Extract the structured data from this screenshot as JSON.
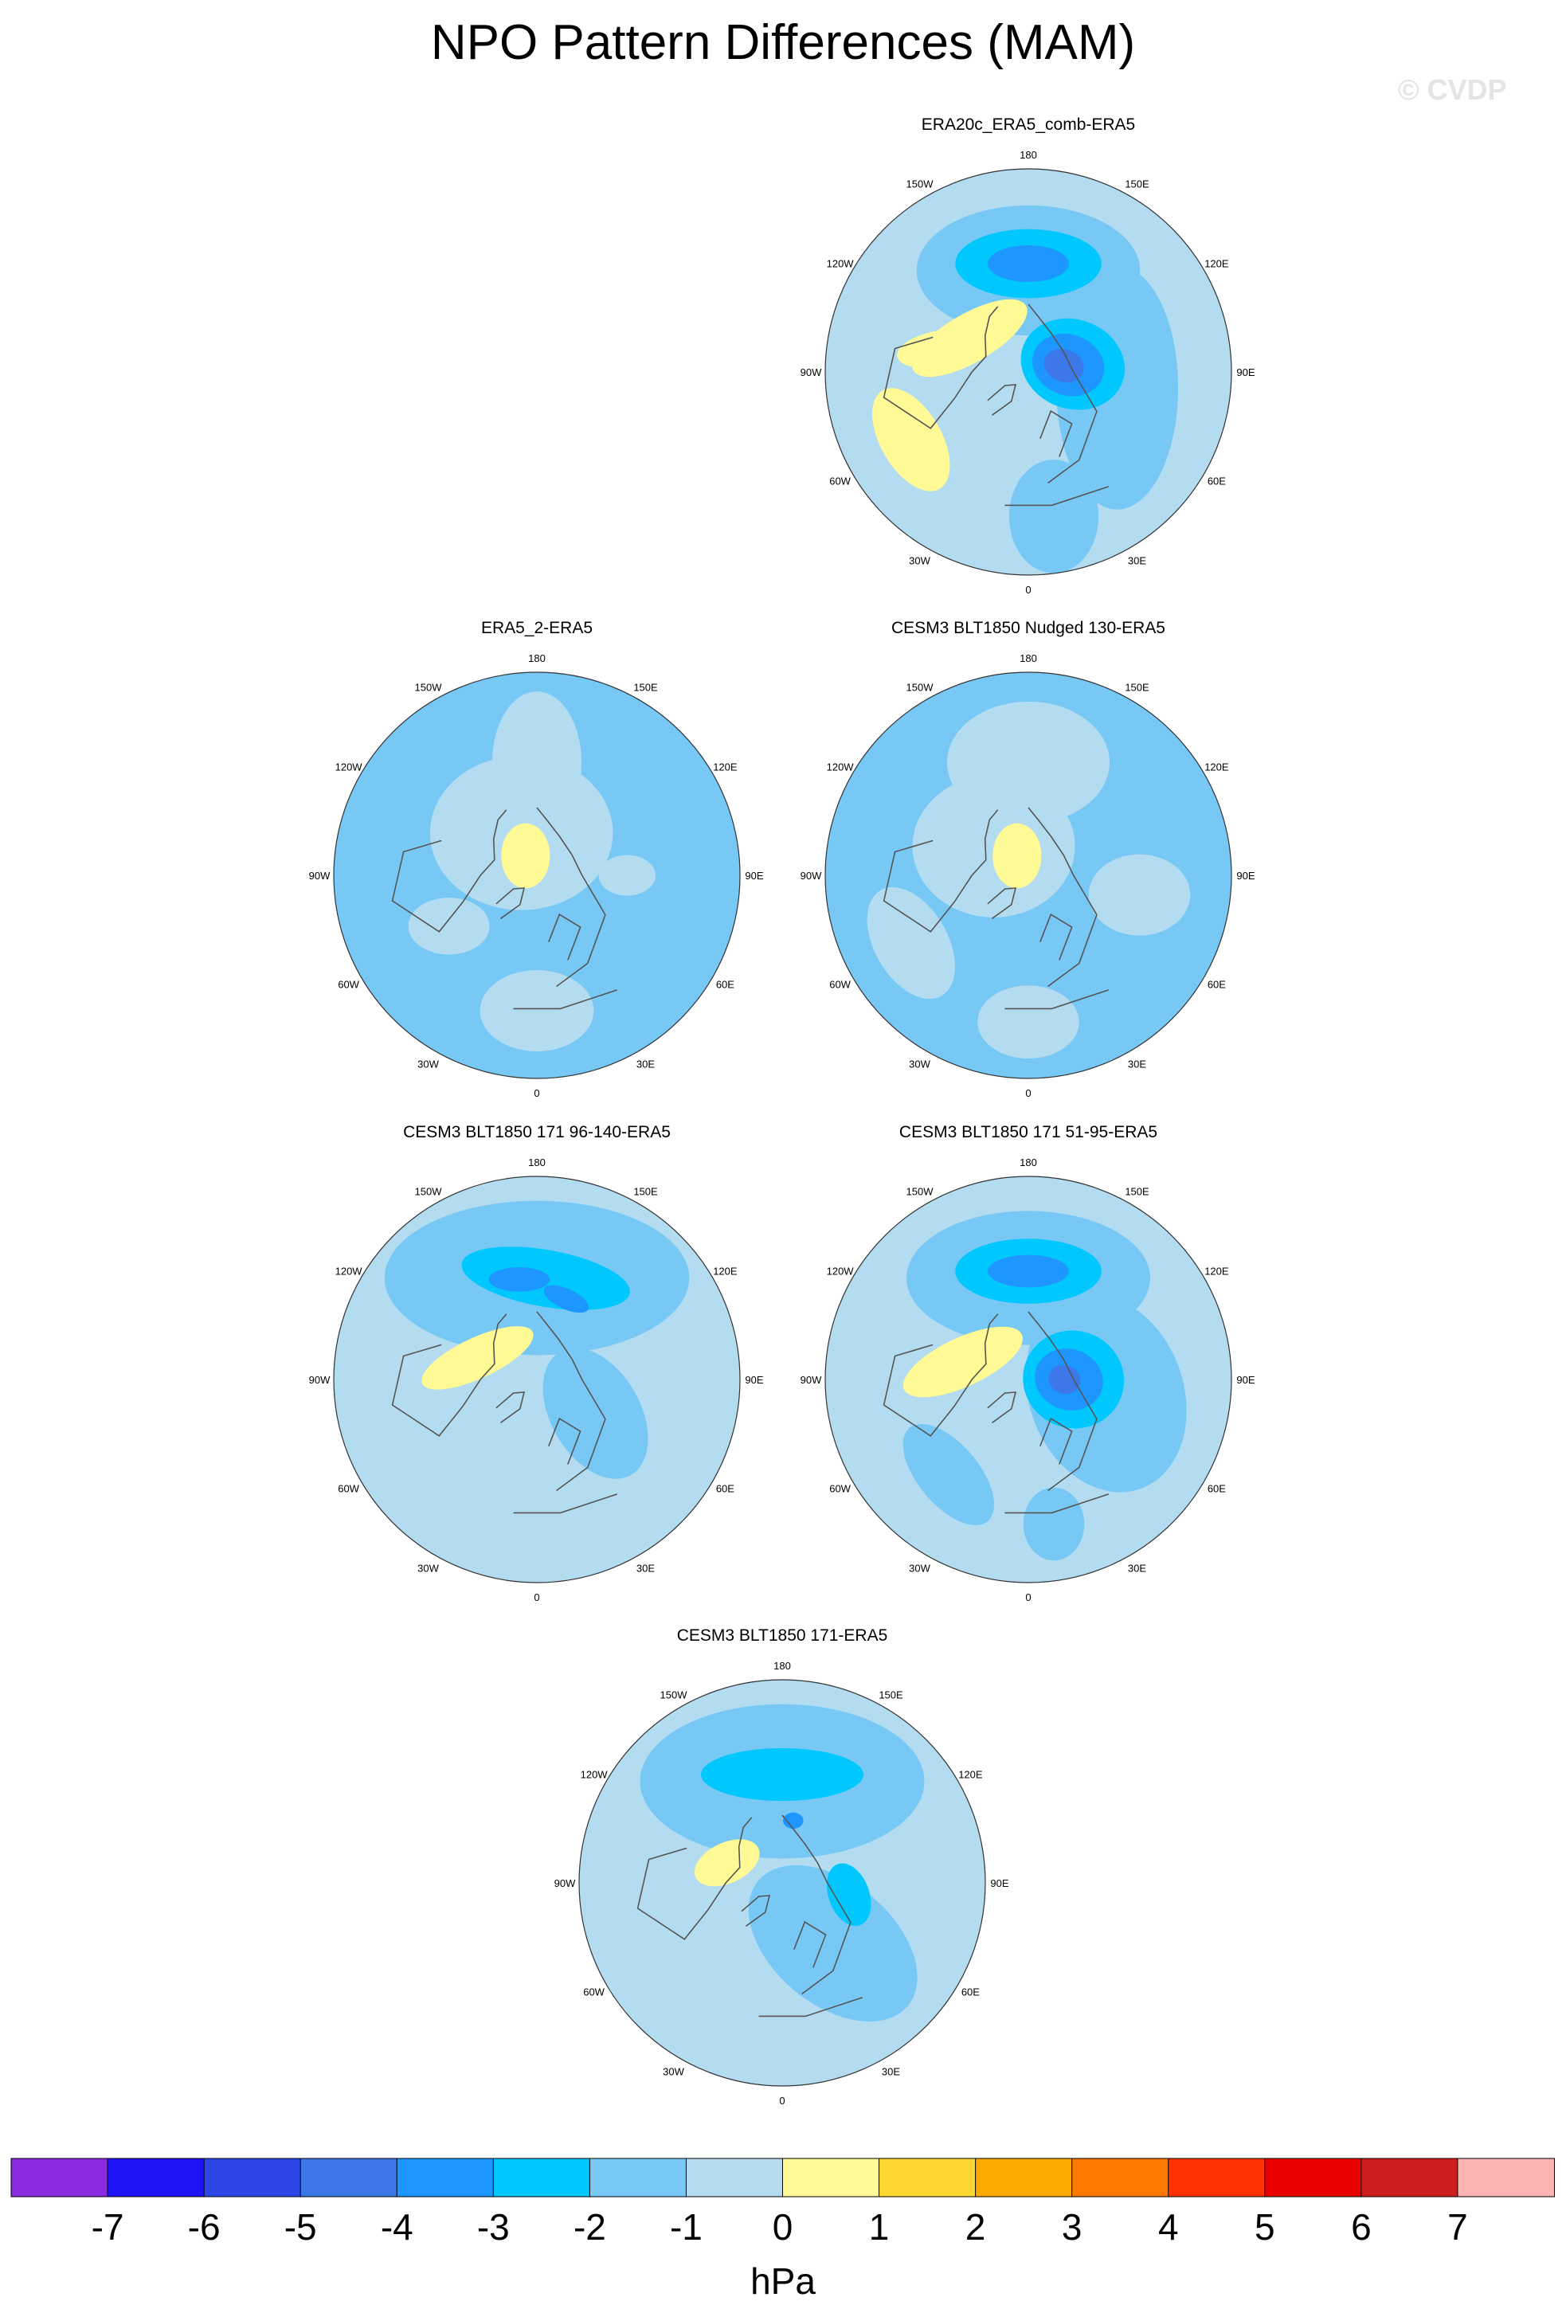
{
  "title": "NPO Pattern Differences (MAM)",
  "watermark": "© CVDP",
  "colors": {
    "levels": [
      "#8a2be2",
      "#1e14f5",
      "#2d46e6",
      "#3c78e8",
      "#1e96ff",
      "#00c8ff",
      "#78c8f5",
      "#b4dcf0",
      "#fff996",
      "#ffd732",
      "#ffaa00",
      "#ff7800",
      "#ff3200",
      "#eb0000",
      "#cd1e1e",
      "#ffb4b4"
    ],
    "coast": "#555555",
    "rim": "#333333"
  },
  "chart_data": [
    {
      "type": "polar-contour-map",
      "title": "ERA20c_ERA5_comb-ERA5",
      "lon_labels": [
        "180",
        "150E",
        "120E",
        "90E",
        "60E",
        "30E",
        "0",
        "30W",
        "60W",
        "90W",
        "120W",
        "150W"
      ],
      "features": [
        {
          "level": 0,
          "lon": 0,
          "lat": 20,
          "rx": 0.95,
          "ry": 0.95
        },
        {
          "level": -1,
          "lon": 180,
          "lat": 45,
          "rx": 0.55,
          "ry": 0.32,
          "rot": 0
        },
        {
          "level": -1,
          "lon": 80,
          "lat": 50,
          "rx": 0.6,
          "ry": 0.3,
          "rot": 90
        },
        {
          "level": -1,
          "lon": 10,
          "lat": 25,
          "rx": 0.22,
          "ry": 0.28,
          "rot": 0
        },
        {
          "level": -2,
          "lon": 180,
          "lat": 42,
          "rx": 0.36,
          "ry": 0.17,
          "rot": 0
        },
        {
          "level": -3,
          "lon": 180,
          "lat": 42,
          "rx": 0.2,
          "ry": 0.09,
          "rot": 0
        },
        {
          "level": -2,
          "lon": 100,
          "lat": 70,
          "rx": 0.26,
          "ry": 0.22,
          "rot": 20
        },
        {
          "level": -3,
          "lon": 100,
          "lat": 72,
          "rx": 0.18,
          "ry": 0.15,
          "rot": 20
        },
        {
          "level": -4,
          "lon": 100,
          "lat": 74,
          "rx": 0.1,
          "ry": 0.08,
          "rot": 20
        },
        {
          "level": 1,
          "lon": 240,
          "lat": 60,
          "rx": 0.32,
          "ry": 0.12,
          "rot": -30
        },
        {
          "level": 1,
          "lon": 300,
          "lat": 30,
          "rx": 0.28,
          "ry": 0.15,
          "rot": 60
        },
        {
          "level": 1,
          "lon": 255,
          "lat": 50,
          "rx": 0.22,
          "ry": 0.09,
          "rot": -10
        }
      ]
    },
    {
      "type": "polar-contour-map",
      "title": "ERA5_2-ERA5",
      "lon_labels": [
        "180",
        "150E",
        "120E",
        "90E",
        "60E",
        "30E",
        "0",
        "30W",
        "60W",
        "90W",
        "120W",
        "150W"
      ],
      "features": [
        {
          "level": -1,
          "lon": 0,
          "lat": 20,
          "rx": 0.95,
          "ry": 0.95
        },
        {
          "level": 0,
          "lon": 180,
          "lat": 40,
          "rx": 0.22,
          "ry": 0.35,
          "rot": 0
        },
        {
          "level": 0,
          "lon": 200,
          "lat": 70,
          "rx": 0.45,
          "ry": 0.38,
          "rot": 0
        },
        {
          "level": 0,
          "lon": 0,
          "lat": 30,
          "rx": 0.28,
          "ry": 0.2,
          "rot": 0
        },
        {
          "level": 0,
          "lon": 300,
          "lat": 45,
          "rx": 0.2,
          "ry": 0.14,
          "rot": 0
        },
        {
          "level": 0,
          "lon": 90,
          "lat": 50,
          "rx": 0.14,
          "ry": 0.1,
          "rot": 0
        },
        {
          "level": 1,
          "lon": 210,
          "lat": 80,
          "rx": 0.12,
          "ry": 0.16,
          "rot": 0
        }
      ]
    },
    {
      "type": "polar-contour-map",
      "title": "CESM3 BLT1850 Nudged 130-ERA5",
      "lon_labels": [
        "180",
        "150E",
        "120E",
        "90E",
        "60E",
        "30E",
        "0",
        "30W",
        "60W",
        "90W",
        "120W",
        "150W"
      ],
      "features": [
        {
          "level": -1,
          "lon": 0,
          "lat": 20,
          "rx": 0.95,
          "ry": 0.95
        },
        {
          "level": 0,
          "lon": 180,
          "lat": 40,
          "rx": 0.4,
          "ry": 0.3,
          "rot": 0
        },
        {
          "level": 0,
          "lon": 230,
          "lat": 70,
          "rx": 0.4,
          "ry": 0.35,
          "rot": 0
        },
        {
          "level": 0,
          "lon": 300,
          "lat": 30,
          "rx": 0.3,
          "ry": 0.18,
          "rot": 60
        },
        {
          "level": 0,
          "lon": 80,
          "lat": 40,
          "rx": 0.25,
          "ry": 0.2,
          "rot": 0
        },
        {
          "level": 0,
          "lon": 0,
          "lat": 25,
          "rx": 0.25,
          "ry": 0.18,
          "rot": 0
        },
        {
          "level": 1,
          "lon": 210,
          "lat": 80,
          "rx": 0.12,
          "ry": 0.16,
          "rot": 0
        }
      ]
    },
    {
      "type": "polar-contour-map",
      "title": "CESM3 BLT1850 171 96-140-ERA5",
      "lon_labels": [
        "180",
        "150E",
        "120E",
        "90E",
        "60E",
        "30E",
        "0",
        "30W",
        "60W",
        "90W",
        "120W",
        "150W"
      ],
      "features": [
        {
          "level": 0,
          "lon": 0,
          "lat": 20,
          "rx": 0.95,
          "ry": 0.95
        },
        {
          "level": -1,
          "lon": 180,
          "lat": 45,
          "rx": 0.75,
          "ry": 0.38,
          "rot": 0
        },
        {
          "level": -1,
          "lon": 60,
          "lat": 60,
          "rx": 0.35,
          "ry": 0.22,
          "rot": 60
        },
        {
          "level": -2,
          "lon": 175,
          "lat": 45,
          "rx": 0.42,
          "ry": 0.14,
          "rot": 10
        },
        {
          "level": -3,
          "lon": 190,
          "lat": 45,
          "rx": 0.15,
          "ry": 0.06,
          "rot": 0
        },
        {
          "level": -3,
          "lon": 160,
          "lat": 52,
          "rx": 0.12,
          "ry": 0.05,
          "rot": 25
        },
        {
          "level": 1,
          "lon": 250,
          "lat": 62,
          "rx": 0.3,
          "ry": 0.1,
          "rot": -25
        }
      ]
    },
    {
      "type": "polar-contour-map",
      "title": "CESM3 BLT1850 171 51-95-ERA5",
      "lon_labels": [
        "180",
        "150E",
        "120E",
        "90E",
        "60E",
        "30E",
        "0",
        "30W",
        "60W",
        "90W",
        "120W",
        "150W"
      ],
      "features": [
        {
          "level": 0,
          "lon": 0,
          "lat": 20,
          "rx": 0.95,
          "ry": 0.95
        },
        {
          "level": -1,
          "lon": 180,
          "lat": 45,
          "rx": 0.6,
          "ry": 0.33,
          "rot": 0
        },
        {
          "level": -1,
          "lon": 80,
          "lat": 55,
          "rx": 0.5,
          "ry": 0.38,
          "rot": 70
        },
        {
          "level": -1,
          "lon": 320,
          "lat": 35,
          "rx": 0.3,
          "ry": 0.15,
          "rot": 50
        },
        {
          "level": -1,
          "lon": 10,
          "lat": 25,
          "rx": 0.15,
          "ry": 0.18,
          "rot": 0
        },
        {
          "level": -2,
          "lon": 180,
          "lat": 42,
          "rx": 0.36,
          "ry": 0.16,
          "rot": 0
        },
        {
          "level": -3,
          "lon": 180,
          "lat": 42,
          "rx": 0.2,
          "ry": 0.08,
          "rot": 0
        },
        {
          "level": -2,
          "lon": 90,
          "lat": 70,
          "rx": 0.25,
          "ry": 0.24,
          "rot": 20
        },
        {
          "level": -3,
          "lon": 90,
          "lat": 72,
          "rx": 0.17,
          "ry": 0.15,
          "rot": 20
        },
        {
          "level": -4,
          "lon": 90,
          "lat": 74,
          "rx": 0.08,
          "ry": 0.07,
          "rot": 20
        },
        {
          "level": 1,
          "lon": 255,
          "lat": 60,
          "rx": 0.32,
          "ry": 0.12,
          "rot": -25
        }
      ]
    },
    {
      "type": "polar-contour-map",
      "title": "CESM3 BLT1850 171-ERA5",
      "lon_labels": [
        "180",
        "150E",
        "120E",
        "90E",
        "60E",
        "30E",
        "0",
        "30W",
        "60W",
        "90W",
        "120W",
        "150W"
      ],
      "features": [
        {
          "level": 0,
          "lon": 0,
          "lat": 20,
          "rx": 0.95,
          "ry": 0.95
        },
        {
          "level": -1,
          "lon": 180,
          "lat": 45,
          "rx": 0.7,
          "ry": 0.38,
          "rot": 0
        },
        {
          "level": -1,
          "lon": 40,
          "lat": 55,
          "rx": 0.48,
          "ry": 0.3,
          "rot": 40
        },
        {
          "level": -2,
          "lon": 180,
          "lat": 42,
          "rx": 0.4,
          "ry": 0.13,
          "rot": 0
        },
        {
          "level": -2,
          "lon": 80,
          "lat": 60,
          "rx": 0.16,
          "ry": 0.1,
          "rot": 70
        },
        {
          "level": -3,
          "lon": 170,
          "lat": 62,
          "rx": 0.05,
          "ry": 0.04,
          "rot": 0
        },
        {
          "level": 1,
          "lon": 250,
          "lat": 64,
          "rx": 0.17,
          "ry": 0.1,
          "rot": -25
        }
      ]
    }
  ],
  "colorbar": {
    "ticks": [
      "-7",
      "-6",
      "-5",
      "-4",
      "-3",
      "-2",
      "-1",
      "0",
      "1",
      "2",
      "3",
      "4",
      "5",
      "6",
      "7"
    ],
    "unit": "hPa"
  }
}
